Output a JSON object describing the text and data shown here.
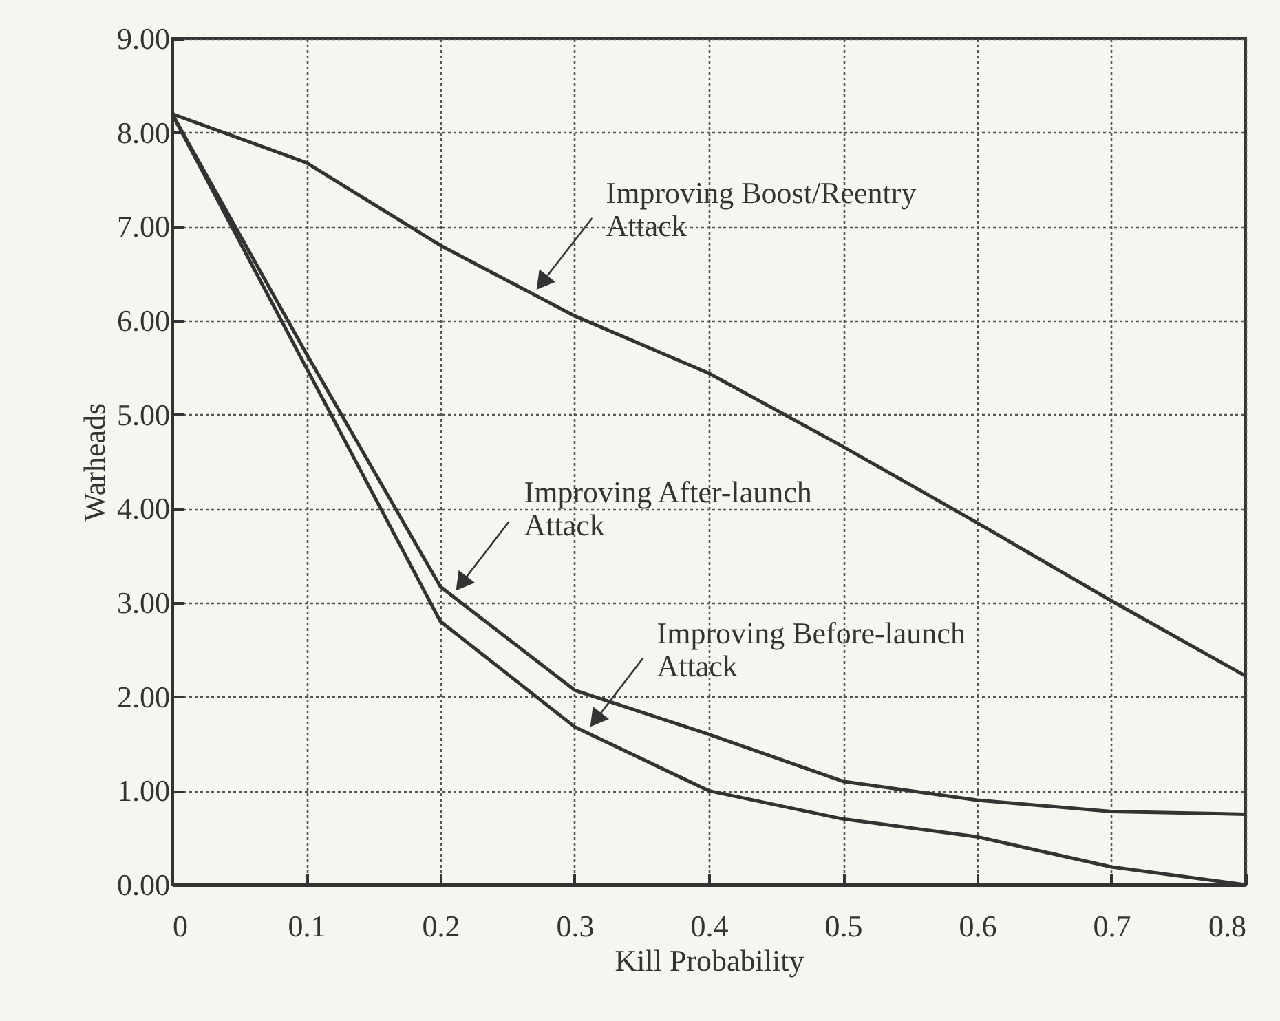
{
  "chart_data": {
    "type": "line",
    "xlabel": "Kill Probability",
    "ylabel": "Warheads",
    "x": [
      0,
      0.1,
      0.2,
      0.3,
      0.4,
      0.5,
      0.6,
      0.7,
      0.8
    ],
    "series": [
      {
        "color": "#333333",
        "values": [
          8.2,
          7.68,
          6.8,
          6.05,
          5.44,
          4.66,
          3.85,
          3.02,
          2.22
        ]
      },
      {
        "color": "#333333",
        "values": [
          8.2,
          5.65,
          3.17,
          2.07,
          1.6,
          1.1,
          0.9,
          0.78,
          0.75
        ]
      },
      {
        "color": "#333333",
        "values": [
          8.2,
          5.5,
          2.8,
          1.68,
          1.0,
          0.7,
          0.51,
          0.19,
          0.0
        ]
      }
    ],
    "xlim": [
      0,
      0.8
    ],
    "xticks": [
      0,
      0.1,
      0.2,
      0.3,
      0.4,
      0.5,
      0.6,
      0.7,
      0.8
    ],
    "ylim": [
      0,
      9
    ],
    "yticks": [
      {
        "value": 0,
        "label": "0.00"
      },
      {
        "value": 1,
        "label": "1.00"
      },
      {
        "value": 2,
        "label": "2.00"
      },
      {
        "value": 3,
        "label": "3.00"
      },
      {
        "value": 4,
        "label": "4.00"
      },
      {
        "value": 5,
        "label": "5.00"
      },
      {
        "value": 6,
        "label": "6.00"
      },
      {
        "value": 7,
        "label": "7.00"
      },
      {
        "value": 8,
        "label": "8.00"
      },
      {
        "value": 9,
        "label": "9.00"
      }
    ],
    "grid": true,
    "line_style": "solid",
    "marker": "none",
    "legend": false,
    "annotations": [
      {
        "text": "Improving Boost/Reentry\nAttack",
        "x": 0.27,
        "y": 6.3
      },
      {
        "text": "Improving After-launch\nAttack",
        "x": 0.21,
        "y": 3.1
      },
      {
        "text": "Improving Before-launch\nAttack",
        "x": 0.31,
        "y": 1.65
      }
    ]
  }
}
